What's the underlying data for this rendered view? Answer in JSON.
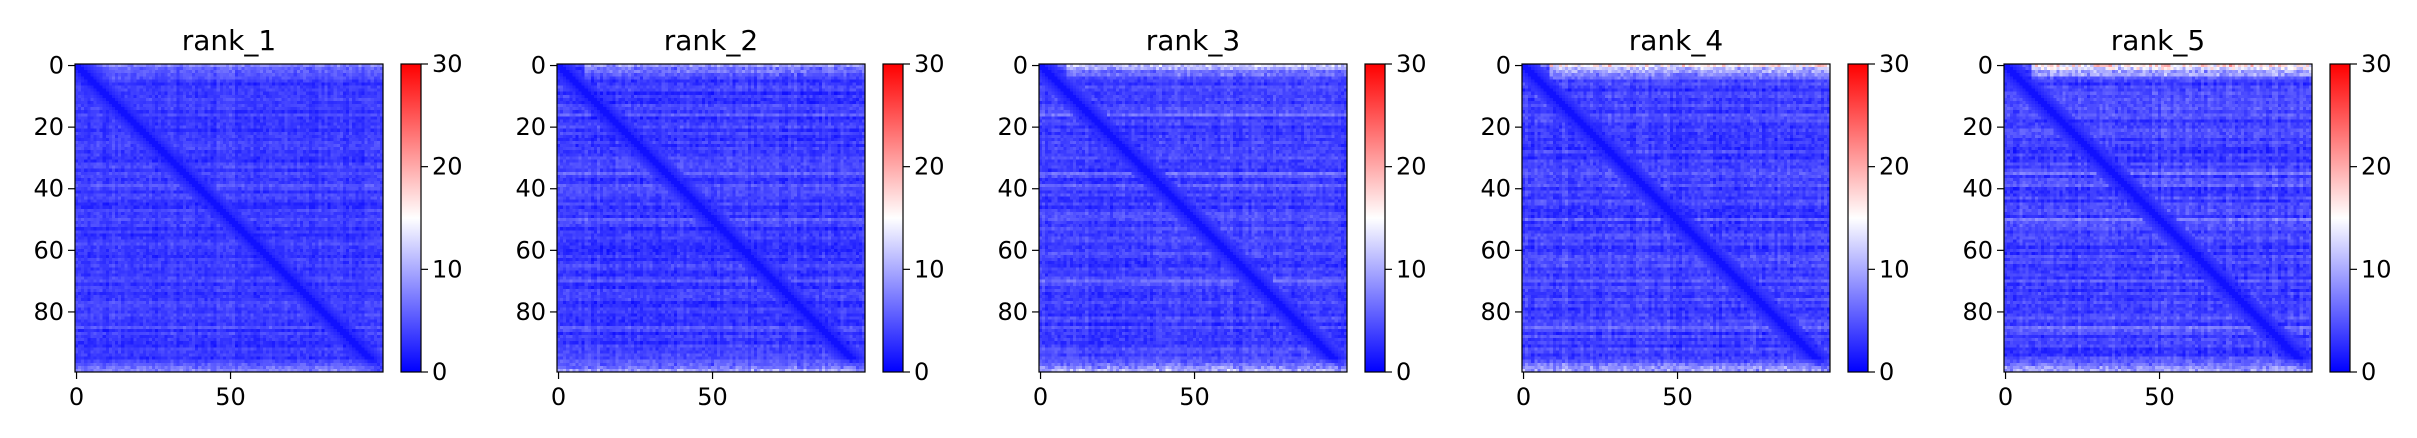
{
  "figure": {
    "background": "#ffffff"
  },
  "chart_data": [
    {
      "type": "heatmap",
      "title": "rank_1",
      "seed": 11,
      "rows": 100,
      "cols": 100,
      "xlim": [
        0,
        99
      ],
      "ylim": [
        99,
        0
      ],
      "xticks": [
        0,
        50
      ],
      "yticks": [
        0,
        20,
        40,
        60,
        80
      ],
      "colorbar": {
        "min": 0,
        "max": 30,
        "ticks": [
          0,
          10,
          20,
          30
        ],
        "colors": [
          "#0000ff",
          "#ffffff",
          "#ff0000"
        ]
      },
      "value_profile": {
        "base": 3.5,
        "noise": 2.0,
        "diagonal": 1.0,
        "top_edge": 3.0,
        "bottom_edge": 4.0,
        "stripe_rows": [
          0,
          16,
          35,
          39,
          50,
          70,
          85
        ],
        "stripe_gain": 3.0
      }
    },
    {
      "type": "heatmap",
      "title": "rank_2",
      "seed": 23,
      "rows": 100,
      "cols": 100,
      "xlim": [
        0,
        99
      ],
      "ylim": [
        99,
        0
      ],
      "xticks": [
        0,
        50
      ],
      "yticks": [
        0,
        20,
        40,
        60,
        80
      ],
      "colorbar": {
        "min": 0,
        "max": 30,
        "ticks": [
          0,
          10,
          20,
          30
        ],
        "colors": [
          "#0000ff",
          "#ffffff",
          "#ff0000"
        ]
      },
      "value_profile": {
        "base": 3.5,
        "noise": 2.2,
        "diagonal": 1.0,
        "top_edge": 5.0,
        "bottom_edge": 7.0,
        "stripe_rows": [
          0,
          16,
          35,
          39,
          50,
          70,
          85
        ],
        "stripe_gain": 3.5
      }
    },
    {
      "type": "heatmap",
      "title": "rank_3",
      "seed": 37,
      "rows": 100,
      "cols": 100,
      "xlim": [
        0,
        99
      ],
      "ylim": [
        99,
        0
      ],
      "xticks": [
        0,
        50
      ],
      "yticks": [
        0,
        20,
        40,
        60,
        80
      ],
      "colorbar": {
        "min": 0,
        "max": 30,
        "ticks": [
          0,
          10,
          20,
          30
        ],
        "colors": [
          "#0000ff",
          "#ffffff",
          "#ff0000"
        ]
      },
      "value_profile": {
        "base": 3.8,
        "noise": 2.3,
        "diagonal": 1.0,
        "top_edge": 6.0,
        "bottom_edge": 9.0,
        "stripe_rows": [
          0,
          16,
          35,
          39,
          50,
          70,
          85
        ],
        "stripe_gain": 4.0
      }
    },
    {
      "type": "heatmap",
      "title": "rank_4",
      "seed": 41,
      "rows": 100,
      "cols": 100,
      "xlim": [
        0,
        99
      ],
      "ylim": [
        99,
        0
      ],
      "xticks": [
        0,
        50
      ],
      "yticks": [
        0,
        20,
        40,
        60,
        80
      ],
      "colorbar": {
        "min": 0,
        "max": 30,
        "ticks": [
          0,
          10,
          20,
          30
        ],
        "colors": [
          "#0000ff",
          "#ffffff",
          "#ff0000"
        ]
      },
      "value_profile": {
        "base": 3.8,
        "noise": 2.4,
        "diagonal": 1.0,
        "top_edge": 9.0,
        "bottom_edge": 8.0,
        "stripe_rows": [
          0,
          16,
          35,
          39,
          50,
          70,
          85
        ],
        "stripe_gain": 4.0
      }
    },
    {
      "type": "heatmap",
      "title": "rank_5",
      "seed": 53,
      "rows": 100,
      "cols": 100,
      "xlim": [
        0,
        99
      ],
      "ylim": [
        99,
        0
      ],
      "xticks": [
        0,
        50
      ],
      "yticks": [
        0,
        20,
        40,
        60,
        80
      ],
      "colorbar": {
        "min": 0,
        "max": 30,
        "ticks": [
          0,
          10,
          20,
          30
        ],
        "colors": [
          "#0000ff",
          "#ffffff",
          "#ff0000"
        ]
      },
      "value_profile": {
        "base": 4.0,
        "noise": 2.5,
        "diagonal": 1.0,
        "top_edge": 11.0,
        "bottom_edge": 8.0,
        "stripe_rows": [
          0,
          16,
          35,
          39,
          50,
          70,
          85
        ],
        "stripe_gain": 4.5
      }
    }
  ]
}
